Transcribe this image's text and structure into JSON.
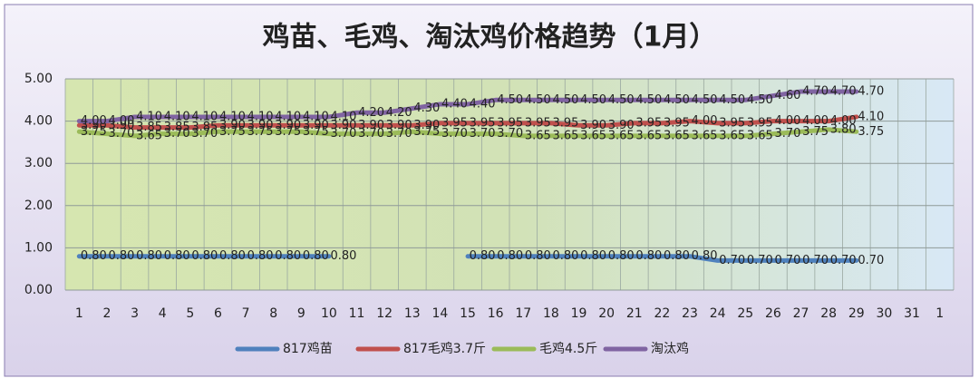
{
  "chart_data": {
    "type": "line",
    "title": "鸡苗、毛鸡、淘汰鸡价格趋势（1月）",
    "categories": [
      "1",
      "2",
      "3",
      "4",
      "5",
      "6",
      "7",
      "8",
      "9",
      "10",
      "11",
      "12",
      "13",
      "14",
      "15",
      "16",
      "17",
      "18",
      "19",
      "20",
      "21",
      "22",
      "23",
      "24",
      "25",
      "26",
      "27",
      "28",
      "29",
      "30",
      "31",
      "1"
    ],
    "ylim": [
      0,
      5
    ],
    "yticks": [
      {
        "value": 0,
        "label": "0.00"
      },
      {
        "value": 1,
        "label": "1.00"
      },
      {
        "value": 2,
        "label": "2.00"
      },
      {
        "value": 3,
        "label": "3.00"
      },
      {
        "value": 4,
        "label": "4.00"
      },
      {
        "value": 5,
        "label": "5.00"
      }
    ],
    "grid": true,
    "legend": "bottom",
    "series": [
      {
        "name": "817鸡苗",
        "color": "#4f81bd",
        "values": [
          0.8,
          0.8,
          0.8,
          0.8,
          0.8,
          0.8,
          0.8,
          0.8,
          0.8,
          0.8,
          null,
          null,
          null,
          null,
          0.8,
          0.8,
          0.8,
          0.8,
          0.8,
          0.8,
          0.8,
          0.8,
          0.8,
          0.7,
          0.7,
          0.7,
          0.7,
          0.7,
          0.7,
          null,
          null,
          null
        ],
        "value_labels": [
          "0.80",
          "0.80",
          "0.80",
          "0.80",
          "0.80",
          "0.80",
          "0.80",
          "0.80",
          "0.80",
          "0.80",
          null,
          null,
          null,
          null,
          "0.80",
          "0.80",
          "0.80",
          "0.80",
          "0.80",
          "0.80",
          "0.80",
          "0.80",
          "0.80",
          "0.70",
          "0.70",
          "0.70",
          "0.70",
          "0.70",
          "0.70",
          null,
          null,
          null
        ]
      },
      {
        "name": "817毛鸡3.7斤",
        "color": "#c0504d",
        "values": [
          3.9,
          3.9,
          3.85,
          3.85,
          3.85,
          3.9,
          3.9,
          3.9,
          3.9,
          3.9,
          3.9,
          3.9,
          3.9,
          3.95,
          3.95,
          3.95,
          3.95,
          3.95,
          3.9,
          3.9,
          3.95,
          3.95,
          4.0,
          3.95,
          3.95,
          4.0,
          4.0,
          4.0,
          4.1,
          null,
          null,
          null
        ],
        "value_labels": [
          "3.90",
          "3.90",
          "3.85",
          "3.85",
          "3.85",
          "3.90",
          "3.90",
          "3.90",
          "3.90",
          "3.90",
          "3.90",
          "3.90",
          "3.90",
          "3.95",
          "3.95",
          "3.95",
          "3.95",
          "3.95",
          "3.90",
          "3.90",
          "3.95",
          "3.95",
          "4.00",
          "3.95",
          "3.95",
          "4.00",
          "4.00",
          "4.00",
          "4.10",
          null,
          null,
          null
        ]
      },
      {
        "name": "毛鸡4.5斤",
        "color": "#9bbb59",
        "values": [
          3.75,
          3.7,
          3.65,
          3.7,
          3.7,
          3.75,
          3.75,
          3.75,
          3.75,
          3.7,
          3.7,
          3.7,
          3.75,
          3.7,
          3.7,
          3.7,
          3.65,
          3.65,
          3.65,
          3.65,
          3.65,
          3.65,
          3.65,
          3.65,
          3.65,
          3.7,
          3.75,
          3.8,
          3.75,
          null,
          null,
          null
        ],
        "value_labels": [
          "3.75",
          "3.70",
          "3.65",
          "3.70",
          "3.70",
          "3.75",
          "3.75",
          "3.75",
          "3.75",
          "3.70",
          "3.70",
          "3.70",
          "3.75",
          "3.70",
          "3.70",
          "3.70",
          "3.65",
          "3.65",
          "3.65",
          "3.65",
          "3.65",
          "3.65",
          "3.65",
          "3.65",
          "3.65",
          "3.70",
          "3.75",
          "3.80",
          "3.75",
          null,
          null,
          null
        ]
      },
      {
        "name": "淘汰鸡",
        "color": "#8064a2",
        "values": [
          4.0,
          4.0,
          4.1,
          4.1,
          4.1,
          4.1,
          4.1,
          4.1,
          4.1,
          4.1,
          4.2,
          4.2,
          4.3,
          4.4,
          4.4,
          4.5,
          4.5,
          4.5,
          4.5,
          4.5,
          4.5,
          4.5,
          4.5,
          4.5,
          4.5,
          4.6,
          4.7,
          4.7,
          4.7,
          null,
          null,
          null
        ],
        "value_labels": [
          "4.00",
          "4.00",
          "4.10",
          "4.10",
          "4.10",
          "4.10",
          "4.10",
          "4.10",
          "4.10",
          "4.10",
          "4.20",
          "4.20",
          "4.30",
          "4.40",
          "4.40",
          "4.50",
          "4.50",
          "4.50",
          "4.50",
          "4.50",
          "4.50",
          "4.50",
          "4.50",
          "4.50",
          "4.50",
          "4.60",
          "4.70",
          "4.70",
          "4.70",
          null,
          null,
          null
        ]
      }
    ]
  }
}
